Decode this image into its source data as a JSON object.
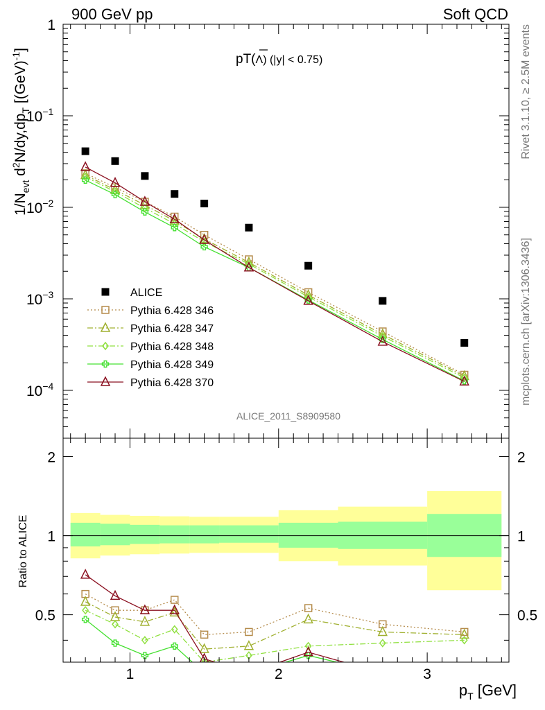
{
  "header": {
    "left": "900 GeV pp",
    "right": "Soft QCD"
  },
  "side_text": {
    "rivet": "Rivet 3.1.10, ≥ 2.5M events",
    "mcplots": "mcplots.cern.ch [arXiv:1306.3436]"
  },
  "analysis_label": "ALICE_2011_S8909580",
  "colors": {
    "data": "#000000",
    "band_outer": "#ffff99",
    "band_inner": "#99ff99",
    "s346": "#b58c4c",
    "s347": "#a0b030",
    "s348": "#90e040",
    "s349": "#44e030",
    "s370": "#8b1020"
  },
  "chart_data": [
    {
      "type": "scatter",
      "title": "pT(Λ̄) (|y| < 0.75)",
      "title_parts": {
        "main": "pT(",
        "symbol": "Λ",
        "tail": ") (|y| < 0.75)"
      },
      "xlabel": "p_T [GeV]",
      "ylabel": "1/N_evt d²N/dy,dp_T [(GeV)⁻¹]",
      "ylabel_parts": {
        "a": "1/N",
        "b": "evt",
        "c": " d",
        "d": "2",
        "e": "N/dy,dp",
        "f": "T",
        "g": " [(GeV)",
        "h": "-1",
        "i": "]"
      },
      "y_scale": "log",
      "xlim": [
        0.55,
        3.55
      ],
      "ylim": [
        3e-05,
        1
      ],
      "y_ticks": [
        {
          "v": 1,
          "label": "1",
          "sup": ""
        },
        {
          "v": 0.1,
          "label": "10",
          "sup": "−1"
        },
        {
          "v": 0.01,
          "label": "10",
          "sup": "−2"
        },
        {
          "v": 0.001,
          "label": "10",
          "sup": "−3"
        },
        {
          "v": 0.0001,
          "label": "10",
          "sup": "−4"
        }
      ],
      "legend_position": "bottom-left",
      "series": [
        {
          "name": "ALICE",
          "key": "data",
          "marker": "square-filled",
          "line": "none",
          "x": [
            0.7,
            0.9,
            1.1,
            1.3,
            1.5,
            1.8,
            2.2,
            2.7,
            3.25
          ],
          "y": [
            0.041,
            0.032,
            0.022,
            0.014,
            0.011,
            0.006,
            0.0023,
            0.00095,
            0.00033
          ]
        },
        {
          "name": "Pythia 6.428 346",
          "key": "s346",
          "marker": "square-open",
          "line": "dotted",
          "x": [
            0.7,
            0.9,
            1.1,
            1.3,
            1.5,
            1.8,
            2.2,
            2.7,
            3.25
          ],
          "y": [
            0.0235,
            0.0165,
            0.0115,
            0.0079,
            0.005,
            0.0027,
            0.00118,
            0.00044,
            0.000148
          ]
        },
        {
          "name": "Pythia 6.428 347",
          "key": "s347",
          "marker": "triangle-open",
          "line": "dash-dot",
          "x": [
            0.7,
            0.9,
            1.1,
            1.3,
            1.5,
            1.8,
            2.2,
            2.7,
            3.25
          ],
          "y": [
            0.0225,
            0.0155,
            0.0106,
            0.0071,
            0.0045,
            0.0025,
            0.0011,
            0.00041,
            0.000143
          ]
        },
        {
          "name": "Pythia 6.428 348",
          "key": "s348",
          "marker": "diamond-open",
          "line": "dash-dot",
          "x": [
            0.7,
            0.9,
            1.1,
            1.3,
            1.5,
            1.8,
            2.2,
            2.7,
            3.25
          ],
          "y": [
            0.0215,
            0.0148,
            0.0098,
            0.0066,
            0.0042,
            0.0024,
            0.00105,
            0.00039,
            0.000137
          ]
        },
        {
          "name": "Pythia 6.428 349",
          "key": "s349",
          "marker": "cross-open",
          "line": "solid",
          "x": [
            0.7,
            0.9,
            1.1,
            1.3,
            1.5,
            1.8,
            2.2,
            2.7,
            3.25
          ],
          "y": [
            0.0198,
            0.0138,
            0.0089,
            0.006,
            0.0037,
            0.0022,
            0.00097,
            0.00036,
            0.000127
          ]
        },
        {
          "name": "Pythia 6.428 370",
          "key": "s370",
          "marker": "triangle-open",
          "line": "solid",
          "x": [
            0.7,
            0.9,
            1.1,
            1.3,
            1.5,
            1.8,
            2.2,
            2.7,
            3.25
          ],
          "y": [
            0.0275,
            0.0185,
            0.0115,
            0.0074,
            0.0044,
            0.0022,
            0.00095,
            0.00034,
            0.000125
          ]
        }
      ]
    },
    {
      "type": "line",
      "ylabel": "Ratio to ALICE",
      "xlabel": "p_T [GeV]",
      "x_ticks": [
        1,
        2,
        3
      ],
      "y_ticks": [
        0.5,
        1,
        2
      ],
      "y_tick_labels": [
        "0.5",
        "1",
        "2"
      ],
      "xlim": [
        0.55,
        3.55
      ],
      "ylim": [
        0.33,
        2.35
      ],
      "y_scale": "log",
      "reference_line": 1,
      "bands": {
        "edges": [
          0.6,
          0.8,
          1.0,
          1.2,
          1.4,
          1.6,
          2.0,
          2.4,
          3.0,
          3.5
        ],
        "outer_low": [
          0.82,
          0.84,
          0.85,
          0.855,
          0.86,
          0.86,
          0.8,
          0.77,
          0.62
        ],
        "outer_high": [
          1.22,
          1.2,
          1.19,
          1.185,
          1.18,
          1.18,
          1.25,
          1.29,
          1.48
        ],
        "inner_low": [
          0.91,
          0.92,
          0.93,
          0.935,
          0.935,
          0.94,
          0.9,
          0.89,
          0.83
        ],
        "inner_high": [
          1.12,
          1.11,
          1.1,
          1.095,
          1.095,
          1.095,
          1.12,
          1.13,
          1.21
        ]
      },
      "series": [
        {
          "name": "Pythia 6.428 346",
          "key": "s346",
          "marker": "square-open",
          "line": "dotted",
          "x": [
            0.7,
            0.9,
            1.1,
            1.3,
            1.5,
            1.8,
            2.2,
            2.7,
            3.25
          ],
          "y": [
            0.6,
            0.52,
            0.52,
            0.57,
            0.42,
            0.43,
            0.53,
            0.46,
            0.43
          ]
        },
        {
          "name": "Pythia 6.428 347",
          "key": "s347",
          "marker": "triangle-open",
          "line": "dash-dot",
          "x": [
            0.7,
            0.9,
            1.1,
            1.3,
            1.5,
            1.8,
            2.2,
            2.7,
            3.25
          ],
          "y": [
            0.56,
            0.49,
            0.47,
            0.51,
            0.37,
            0.38,
            0.48,
            0.43,
            0.42
          ]
        },
        {
          "name": "Pythia 6.428 348",
          "key": "s348",
          "marker": "diamond-open",
          "line": "dash-dot",
          "x": [
            0.7,
            0.9,
            1.1,
            1.3,
            1.5,
            1.8,
            2.2,
            2.7,
            3.25
          ],
          "y": [
            0.52,
            0.46,
            0.4,
            0.44,
            0.33,
            0.35,
            0.38,
            0.39,
            0.4
          ]
        },
        {
          "name": "Pythia 6.428 349",
          "key": "s349",
          "marker": "cross-open",
          "line": "solid",
          "x": [
            0.7,
            0.9,
            1.1,
            1.3,
            1.5,
            1.8,
            2.2,
            2.7,
            3.25
          ],
          "y": [
            0.48,
            0.39,
            0.35,
            0.38,
            0.3,
            0.3,
            0.35,
            0.3,
            0.3
          ]
        },
        {
          "name": "Pythia 6.428 370",
          "key": "s370",
          "marker": "triangle-open",
          "line": "solid",
          "x": [
            0.7,
            0.9,
            1.1,
            1.3,
            1.5,
            1.8,
            2.2,
            2.7,
            3.25
          ],
          "y": [
            0.71,
            0.59,
            0.52,
            0.52,
            0.34,
            0.3,
            0.36,
            0.3,
            0.3
          ]
        }
      ]
    }
  ]
}
